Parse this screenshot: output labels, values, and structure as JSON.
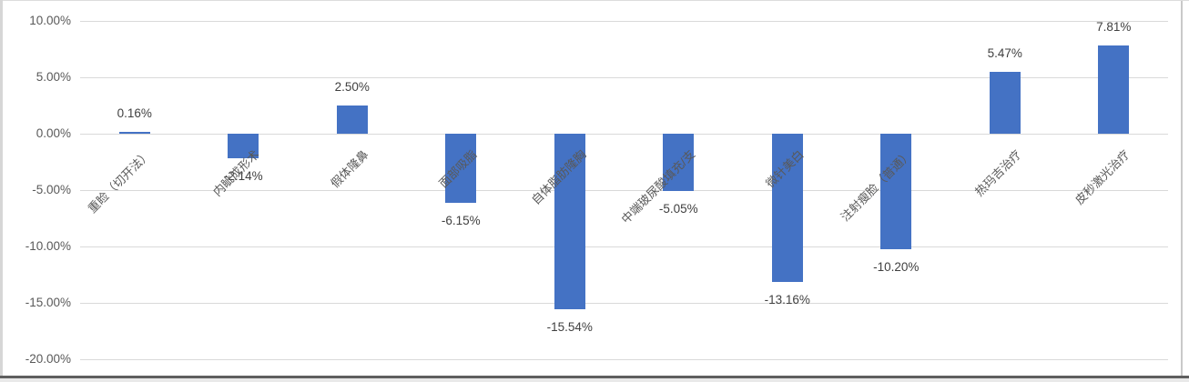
{
  "chart_data": {
    "type": "bar",
    "title": "",
    "xlabel": "",
    "ylabel": "",
    "categories": [
      "重睑（切开法）",
      "内眦成形术",
      "假体隆鼻",
      "面部吸脂",
      "自体脂肪隆胸",
      "中端玻尿酸填充/支",
      "微针美白",
      "注射瘦脸（普通）",
      "热玛吉治疗",
      "皮秒激光治疗"
    ],
    "values": [
      0.16,
      -2.14,
      2.5,
      -6.15,
      -15.54,
      -5.05,
      -13.16,
      -10.2,
      5.47,
      7.81
    ],
    "value_labels": [
      "0.16%",
      "-2.14%",
      "2.50%",
      "-6.15%",
      "-15.54%",
      "-5.05%",
      "-13.16%",
      "-10.20%",
      "5.47%",
      "7.81%"
    ],
    "unit": "%",
    "ylim": [
      -20,
      10
    ],
    "ytick_interval": 5,
    "ytick_labels": [
      "10.00%",
      "5.00%",
      "0.00%",
      "-5.00%",
      "-10.00%",
      "-15.00%",
      "-20.00%"
    ],
    "grid": "horizontal",
    "legend": "none",
    "colors": {
      "bar": "#4472C4",
      "gridline": "#D9D9D9",
      "axis_text": "#595959",
      "data_label": "#404040"
    }
  }
}
